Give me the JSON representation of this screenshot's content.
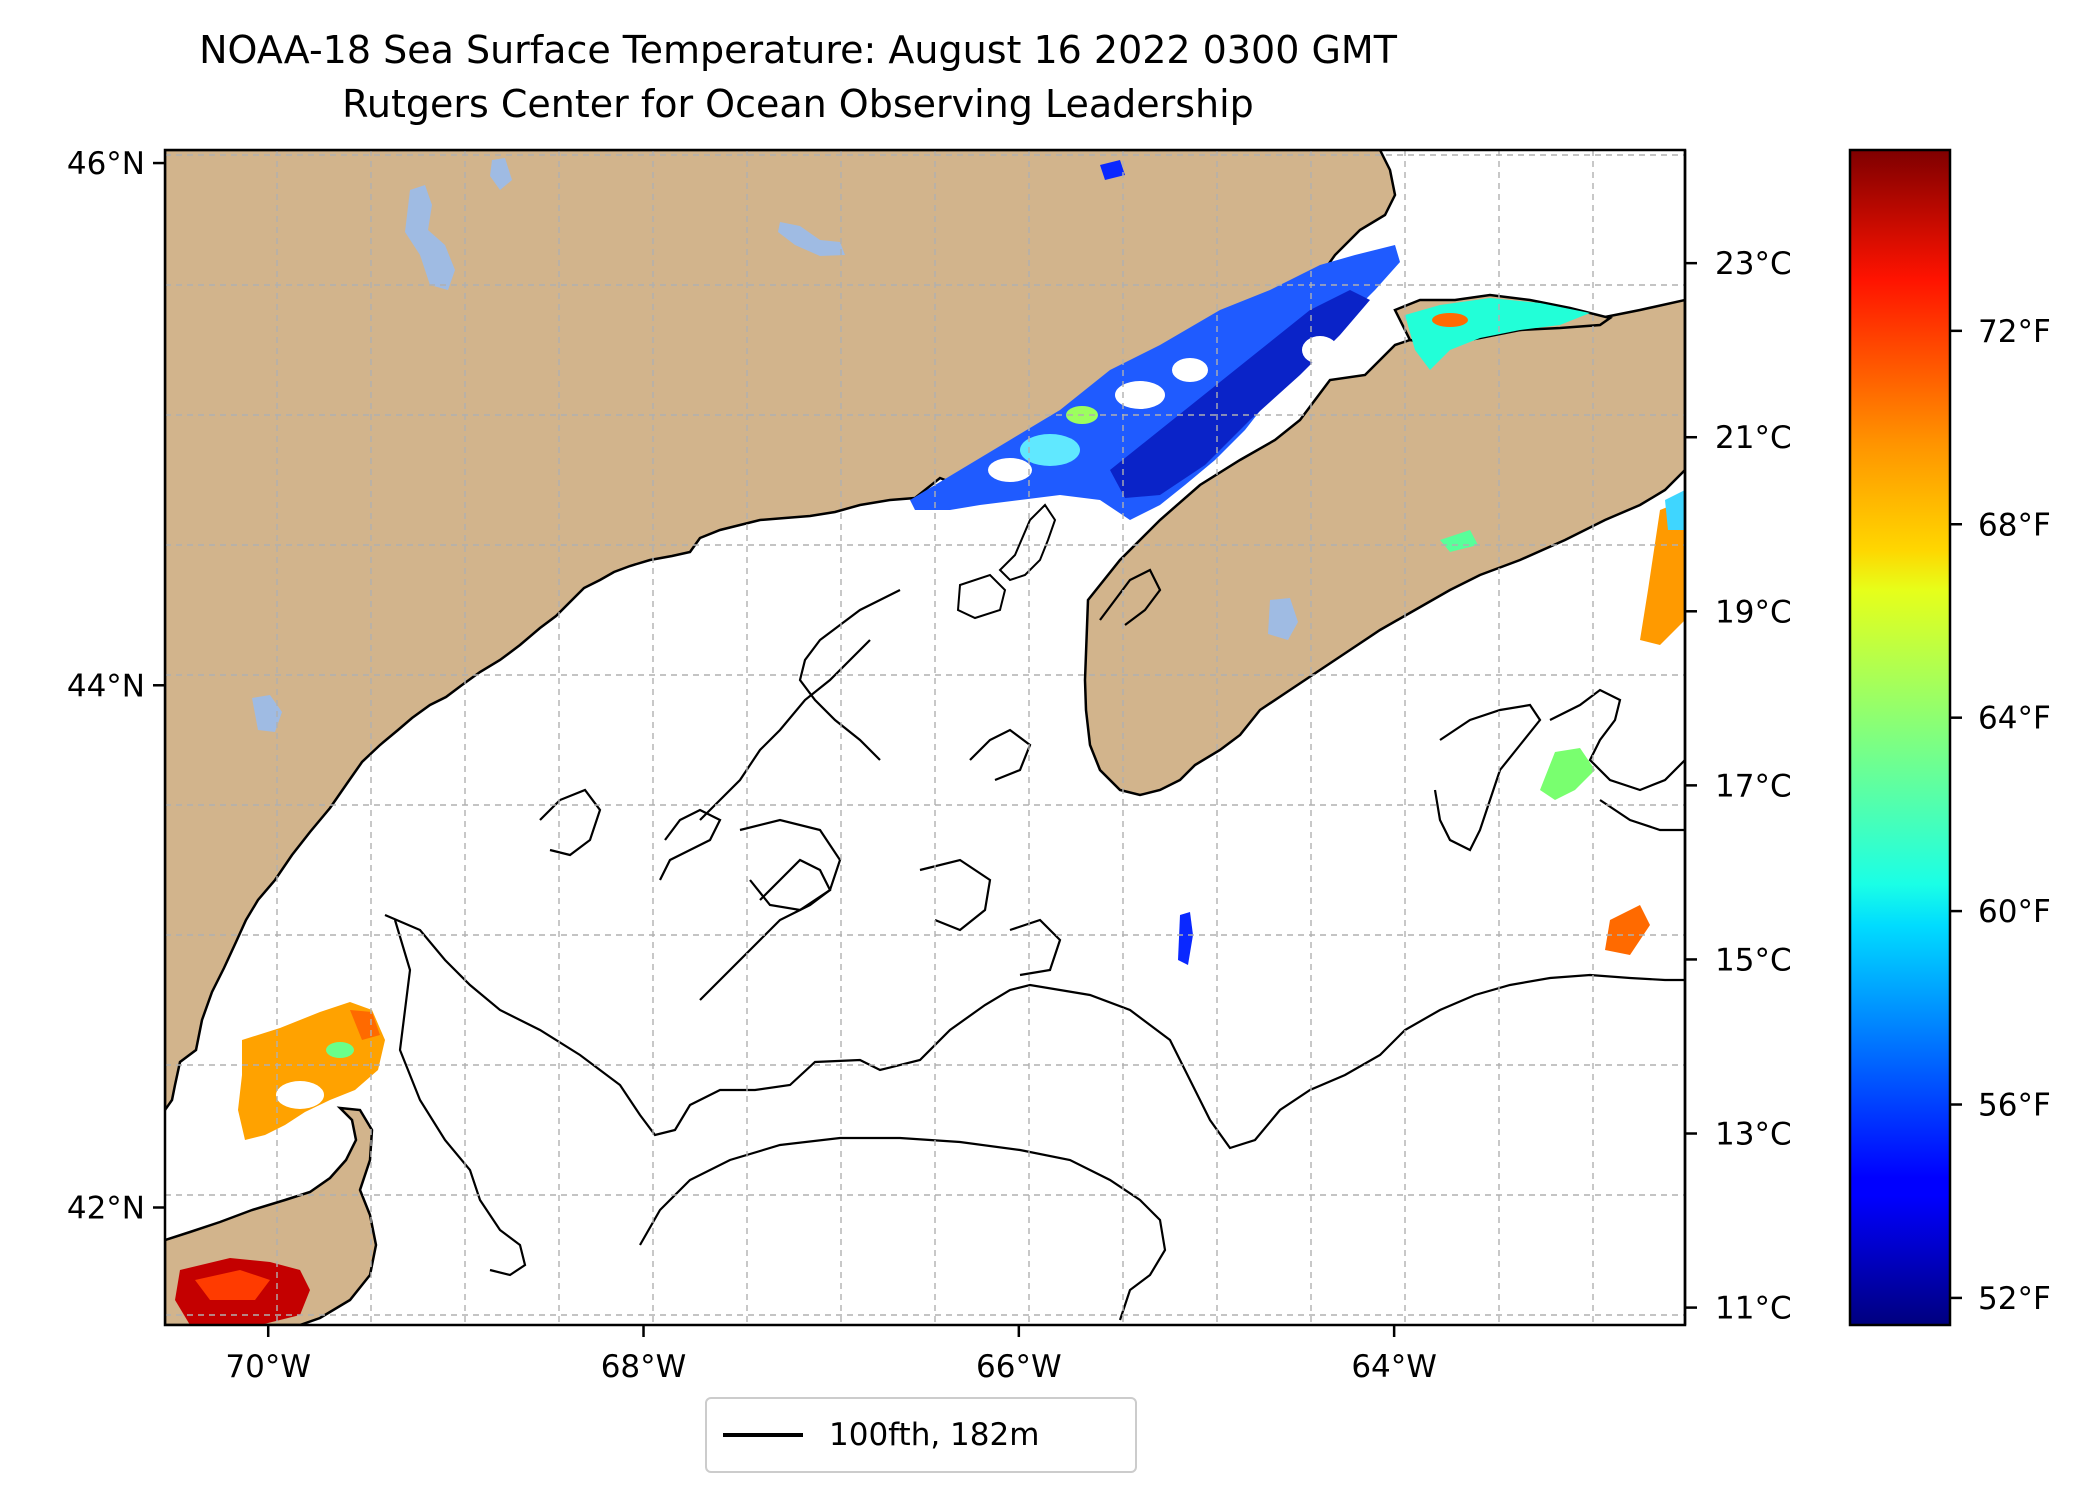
{
  "title": "NOAA-18 Sea Surface Temperature: August 16 2022 0300 GMT",
  "subtitle": "Rutgers Center for Ocean Observing Leadership",
  "map": {
    "projection": "lon-lat",
    "lon_range": [
      -70.55,
      -62.45
    ],
    "lat_range": [
      41.55,
      46.05
    ],
    "lon_ticks": [
      {
        "value": -70,
        "label": "70°W"
      },
      {
        "value": -68,
        "label": "68°W"
      },
      {
        "value": -66,
        "label": "66°W"
      },
      {
        "value": -64,
        "label": "64°W"
      }
    ],
    "lat_ticks": [
      {
        "value": 42,
        "label": "42°N"
      },
      {
        "value": 44,
        "label": "44°N"
      },
      {
        "value": 46,
        "label": "46°N"
      }
    ],
    "grid": true,
    "colors": {
      "land": "#d2b48c",
      "ocean": "#ffffff",
      "lakes": "#9fbbe3",
      "coastline": "#000000",
      "grid": "#b0b0b0"
    }
  },
  "colorbar": {
    "colormap": "jet",
    "range_c": [
      10.8,
      24.3
    ],
    "celsius_ticks": [
      {
        "value": 11,
        "label": "11°C"
      },
      {
        "value": 13,
        "label": "13°C"
      },
      {
        "value": 15,
        "label": "15°C"
      },
      {
        "value": 17,
        "label": "17°C"
      },
      {
        "value": 19,
        "label": "19°C"
      },
      {
        "value": 21,
        "label": "21°C"
      },
      {
        "value": 23,
        "label": "23°C"
      }
    ],
    "fahrenheit_ticks": [
      {
        "value": 52,
        "label": "52°F"
      },
      {
        "value": 56,
        "label": "56°F"
      },
      {
        "value": 60,
        "label": "60°F"
      },
      {
        "value": 64,
        "label": "64°F"
      },
      {
        "value": 68,
        "label": "68°F"
      },
      {
        "value": 72,
        "label": "72°F"
      }
    ]
  },
  "legend": {
    "label": "100fth, 182m",
    "color": "#000000",
    "location": "below-map"
  }
}
